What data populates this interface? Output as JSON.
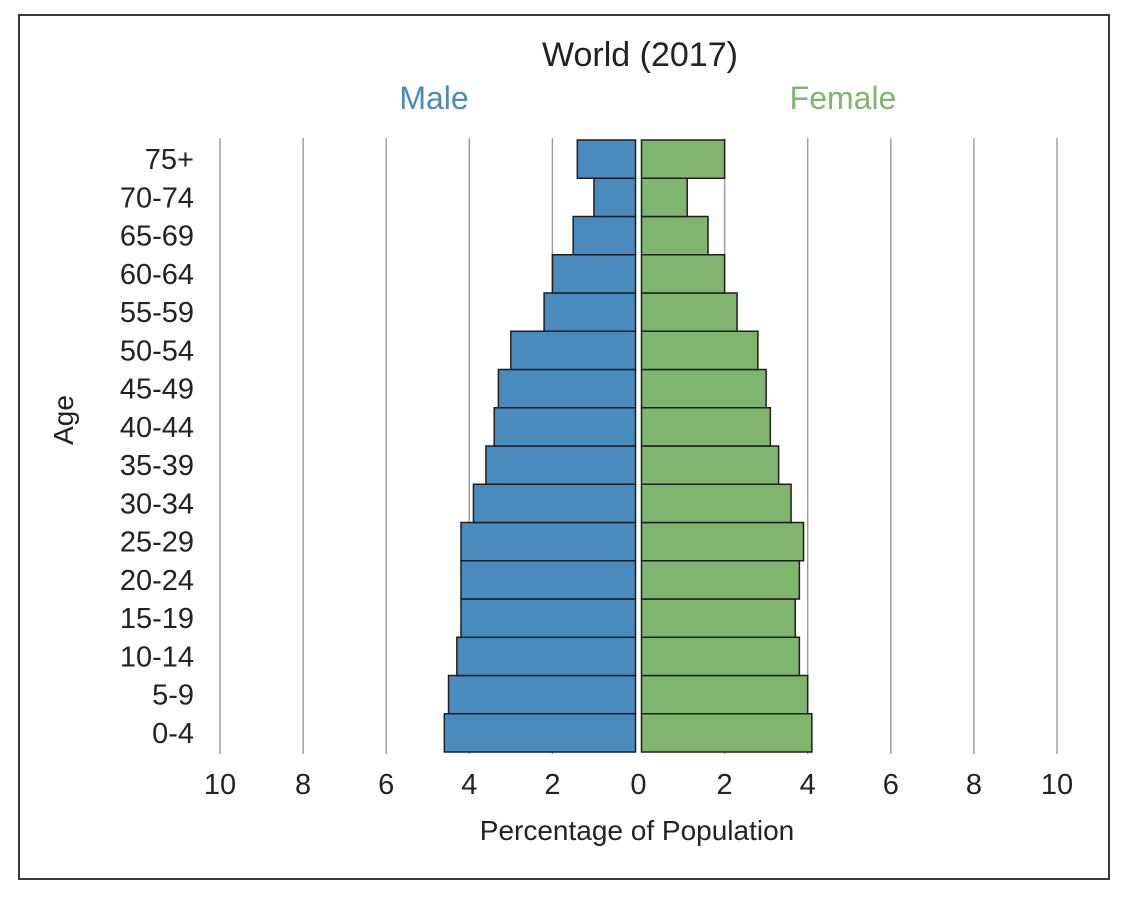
{
  "chart_data": {
    "type": "bar",
    "title": "World (2017)",
    "left_label": "Male",
    "right_label": "Female",
    "xlabel": "Percentage of Population",
    "ylabel": "Age",
    "xlim": [
      -10,
      10
    ],
    "x_ticks": [
      -10,
      -8,
      -6,
      -4,
      -2,
      0,
      2,
      4,
      6,
      8,
      10
    ],
    "x_tick_labels": [
      "10",
      "8",
      "6",
      "4",
      "2",
      "0",
      "2",
      "4",
      "6",
      "8",
      "10"
    ],
    "grid": "vertical",
    "categories": [
      "0-4",
      "5-9",
      "10-14",
      "15-19",
      "20-24",
      "25-29",
      "30-34",
      "35-39",
      "40-44",
      "45-49",
      "50-54",
      "55-59",
      "60-64",
      "65-69",
      "70-74",
      "75+"
    ],
    "series": [
      {
        "name": "Male",
        "color": "#4a8bbd",
        "values": [
          4.6,
          4.5,
          4.3,
          4.2,
          4.2,
          4.2,
          3.9,
          3.6,
          3.4,
          3.3,
          3.0,
          2.2,
          2.0,
          1.5,
          1.0,
          1.4
        ]
      },
      {
        "name": "Female",
        "color": "#7fb56f",
        "values": [
          4.1,
          4.0,
          3.8,
          3.7,
          3.8,
          3.9,
          3.6,
          3.3,
          3.1,
          3.0,
          2.8,
          2.3,
          2.0,
          1.6,
          1.1,
          2.0
        ]
      }
    ]
  }
}
